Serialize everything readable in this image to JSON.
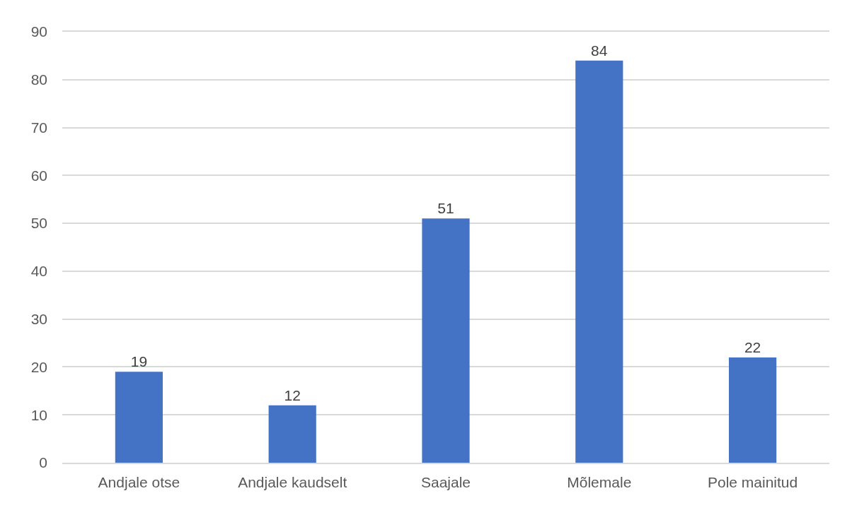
{
  "chart_data": {
    "type": "bar",
    "categories": [
      "Andjale otse",
      "Andjale kaudselt",
      "Saajale",
      "Mõlemale",
      "Pole mainitud"
    ],
    "values": [
      19,
      12,
      51,
      84,
      22
    ],
    "color": "#4472c4",
    "ylim": [
      0,
      90
    ],
    "yticks": [
      0,
      10,
      20,
      30,
      40,
      50,
      60,
      70,
      80,
      90
    ],
    "grid": "y",
    "data_labels": true
  }
}
